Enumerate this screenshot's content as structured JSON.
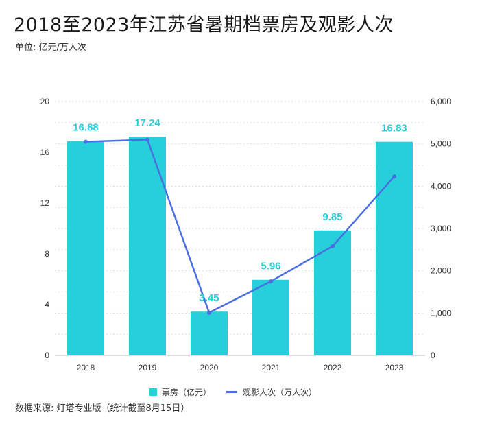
{
  "title": "2018至2023年江苏省暑期档票房及观影人次",
  "subtitle": "单位: 亿元/万人次",
  "source": "数据来源: 灯塔专业版（统计截至8月15日）",
  "colors": {
    "bar": "#26cfd9",
    "line": "#4a6fe3",
    "label": "#26cfd9"
  },
  "chart_data": {
    "type": "bar",
    "categories": [
      "2018",
      "2019",
      "2020",
      "2021",
      "2022",
      "2023"
    ],
    "series": [
      {
        "name": "票房（亿元）",
        "type": "bar",
        "axis": "left",
        "values": [
          16.88,
          17.24,
          3.45,
          5.96,
          9.85,
          16.83
        ]
      },
      {
        "name": "观影人次（万人次）",
        "type": "line",
        "axis": "right",
        "values": [
          5050,
          5100,
          1010,
          1750,
          2580,
          4230
        ]
      }
    ],
    "y_left": {
      "min": 0,
      "max": 20,
      "ticks": [
        "0",
        "4",
        "8",
        "12",
        "16",
        "20"
      ]
    },
    "y_right": {
      "min": 0,
      "max": 6000,
      "ticks": [
        "0",
        "1,000",
        "2,000",
        "3,000",
        "4,000",
        "5,000",
        "6,000"
      ]
    },
    "grid": true,
    "legend_position": "bottom"
  }
}
